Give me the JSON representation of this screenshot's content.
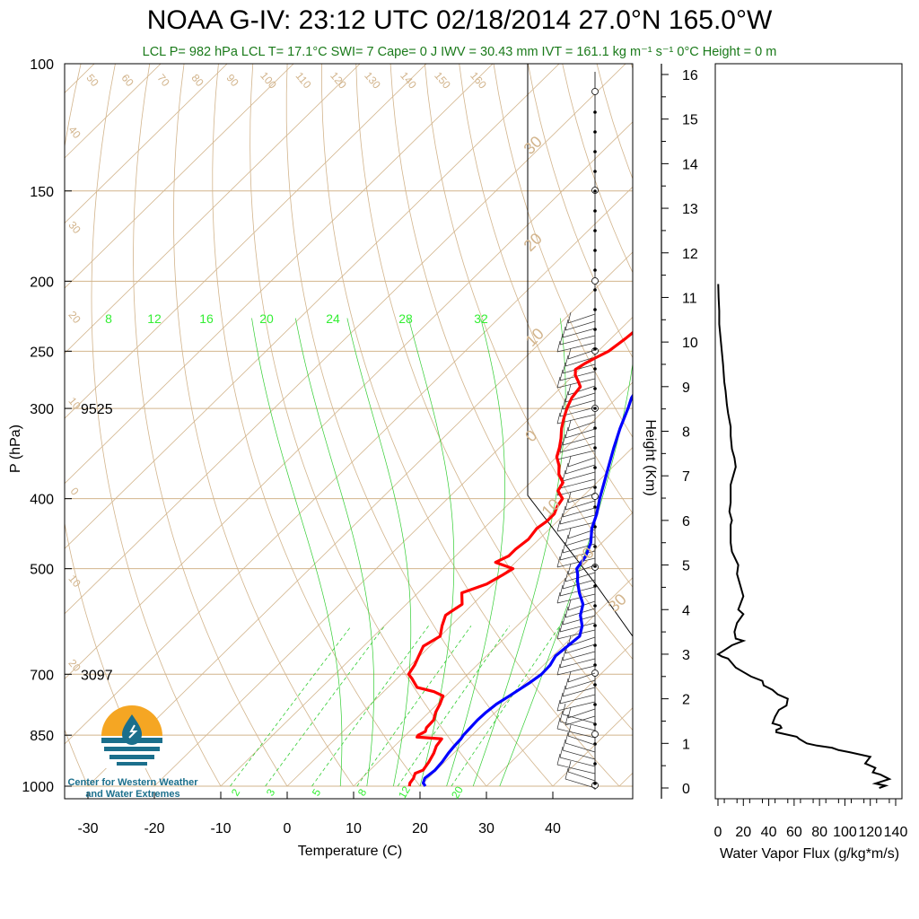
{
  "title": "NOAA G-IV: 23:12 UTC 02/18/2014  27.0°N 165.0°W",
  "subtitle": "LCL P= 982 hPa  LCL T= 17.1°C  SWI= 7  Cape= 0 J  IWV = 30.43 mm  IVT = 161.1 kg m⁻¹ s⁻¹  0°C Height = 0 m",
  "logo_text": [
    "Center for Western Weather",
    "and Water Extremes"
  ],
  "colors": {
    "temperature": "#ff0000",
    "dewpoint": "#0000ff",
    "isotherm": "#d2b48c",
    "mixing_ratio": "#32cd32",
    "moist_adiabat": "#32cd32",
    "dry_adiabat": "#d2b48c",
    "subtitle": "#1a7a1a",
    "logo_orange": "#f5a623",
    "logo_blue": "#1b6f8c"
  },
  "chart_data": [
    {
      "type": "line",
      "name": "skew-T",
      "xlabel": "Temperature (C)",
      "ylabel": "P (hPa)",
      "x_ticks": [
        "-30",
        "-20",
        "-10",
        "0",
        "10",
        "20",
        "30",
        "40"
      ],
      "y_ticks": [
        "100",
        "150",
        "200",
        "250",
        "300",
        "400",
        "500",
        "700",
        "850",
        "1000"
      ],
      "ylim": [
        1000,
        100
      ],
      "y_scale": "log",
      "height_labels": [
        {
          "p": 300,
          "text": "9525"
        },
        {
          "p": 700,
          "text": "3097"
        }
      ],
      "mixing_ratio_top_labels": [
        "8",
        "12",
        "16",
        "20",
        "24",
        "28",
        "32"
      ],
      "mixing_ratio_bottom_labels": [
        "2",
        "3",
        "5",
        "8",
        "12",
        "20"
      ],
      "dry_adiabat_labels": [
        "50",
        "60",
        "70",
        "80",
        "90",
        "100",
        "110",
        "120",
        "130",
        "140",
        "150",
        "160"
      ],
      "isotherm_side_labels": [
        "40",
        "30",
        "20",
        "10",
        "0",
        "10",
        "20"
      ],
      "moist_adiabat_labels": [
        "30",
        "20",
        "10",
        "0",
        "10",
        "20",
        "30"
      ],
      "series": [
        {
          "name": "Temperature",
          "p": [
            1000,
            990,
            975,
            960,
            950,
            925,
            900,
            880,
            860,
            855,
            850,
            848,
            840,
            830,
            810,
            790,
            770,
            750,
            740,
            730,
            710,
            700,
            680,
            660,
            640,
            620,
            600,
            580,
            560,
            540,
            525,
            510,
            500,
            490,
            480,
            470,
            455,
            440,
            430,
            420,
            410,
            400,
            390,
            380,
            370,
            360,
            350,
            340,
            330,
            320,
            310,
            300,
            290,
            280,
            275,
            270,
            265,
            260,
            255,
            250,
            240,
            230,
            225
          ],
          "t": [
            18.4,
            18.0,
            17.8,
            17.3,
            18.0,
            17.6,
            17.0,
            16.3,
            16.0,
            12.0,
            11.9,
            12.0,
            12.4,
            12.0,
            11.9,
            11.0,
            10.4,
            9.6,
            7.6,
            4.4,
            2.3,
            1.1,
            0.6,
            -0.2,
            -1.0,
            0.0,
            -1.3,
            -2.4,
            -1.6,
            -3.4,
            -1.0,
            0.0,
            0.6,
            -3.0,
            -2.0,
            -2.0,
            -1.6,
            -2.0,
            -1.6,
            -1.6,
            -2.3,
            -2.7,
            -4.6,
            -5.1,
            -7.0,
            -8.3,
            -10.0,
            -11.0,
            -12.2,
            -13.6,
            -14.8,
            -15.9,
            -16.8,
            -17.2,
            -18.4,
            -19.7,
            -20.6,
            -20.1,
            -19.3,
            -18.4,
            -17.8,
            -17.4,
            -17.0
          ]
        },
        {
          "name": "Dew point",
          "p": [
            1000,
            990,
            975,
            950,
            925,
            900,
            880,
            860,
            850,
            830,
            810,
            790,
            770,
            750,
            720,
            700,
            680,
            660,
            640,
            620,
            600,
            580,
            560,
            540,
            520,
            510,
            500,
            480,
            460,
            440,
            420,
            400,
            380,
            360,
            340,
            320,
            300,
            290,
            280,
            270,
            265,
            260,
            255,
            250,
            245,
            240,
            230,
            225
          ],
          "t": [
            20.8,
            20.0,
            19.5,
            19.8,
            19.6,
            19.2,
            19.0,
            18.9,
            18.7,
            18.6,
            18.5,
            18.6,
            18.9,
            19.6,
            20.6,
            21.1,
            21.0,
            20.4,
            20.7,
            21.0,
            19.8,
            17.9,
            16.6,
            14.3,
            12.2,
            11.3,
            10.2,
            9.6,
            8.3,
            6.3,
            4.8,
            2.9,
            1.1,
            -0.8,
            -2.8,
            -4.8,
            -6.7,
            -7.8,
            -8.4,
            -9.6,
            -9.9,
            -9.4,
            -8.2,
            -6.5,
            -4.5,
            -3.9,
            -3.7,
            -3.9
          ]
        }
      ]
    },
    {
      "type": "line",
      "name": "water-vapor-flux-profile",
      "xlabel": "Water Vapor Flux (g/kg*m/s)",
      "ylabel": "Height (Km)",
      "x_ticks": [
        "0",
        "20",
        "40",
        "60",
        "80",
        "100",
        "120",
        "140"
      ],
      "y_ticks": [
        "0",
        "1",
        "2",
        "3",
        "4",
        "5",
        "6",
        "7",
        "8",
        "9",
        "10",
        "11",
        "12",
        "13",
        "14",
        "15",
        "16"
      ],
      "xlim": [
        0,
        140
      ],
      "ylim": [
        0,
        16.3
      ],
      "series": [
        {
          "name": "flux",
          "h": [
            0.0,
            0.05,
            0.1,
            0.2,
            0.3,
            0.35,
            0.45,
            0.55,
            0.7,
            0.8,
            0.85,
            0.9,
            0.95,
            1.0,
            1.1,
            1.15,
            1.25,
            1.3,
            1.35,
            1.4,
            1.45,
            1.6,
            1.75,
            1.85,
            2.0,
            2.1,
            2.2,
            2.3,
            2.4,
            2.5,
            2.6,
            2.7,
            2.8,
            2.9,
            2.95,
            3.0,
            3.05,
            3.2,
            3.3,
            3.35,
            3.5,
            3.7,
            3.9,
            4.0,
            4.3,
            4.5,
            4.8,
            5.0,
            5.3,
            5.5,
            5.7,
            5.9,
            6.0,
            6.2,
            6.4,
            6.6,
            6.8,
            7.0,
            7.2,
            7.4,
            7.6,
            7.9,
            8.1,
            8.4,
            8.6,
            8.9,
            9.1,
            9.5,
            9.8,
            10.1,
            10.4,
            10.7,
            11.0,
            11.3
          ],
          "v": [
            127,
            132,
            124,
            135,
            128,
            122,
            124,
            116,
            120,
            104,
            95,
            90,
            78,
            70,
            64,
            62,
            46,
            46,
            50,
            49,
            43,
            45,
            48,
            54,
            55,
            47,
            43,
            36,
            35,
            26,
            20,
            14,
            11,
            8,
            3,
            0,
            3,
            11,
            20,
            14,
            13,
            15,
            20,
            16,
            20,
            18,
            15,
            16,
            11,
            10,
            10,
            10,
            11,
            9,
            10,
            10,
            10,
            12,
            14,
            13,
            11,
            10,
            10,
            8,
            7,
            6,
            5,
            4,
            3,
            2,
            1,
            1,
            0.5,
            0.2
          ]
        }
      ]
    }
  ]
}
